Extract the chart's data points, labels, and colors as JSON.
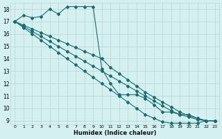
{
  "bg_color": "#d4f0f0",
  "grid_color": "#b8d4d4",
  "line_color": "#1a6b6b",
  "xlabel": "Humidex (Indice chaleur)",
  "ylim": [
    8.7,
    18.5
  ],
  "xlim": [
    -0.5,
    23.5
  ],
  "yticks": [
    9,
    10,
    11,
    12,
    13,
    14,
    15,
    16,
    17,
    18
  ],
  "xticks": [
    0,
    1,
    2,
    3,
    4,
    5,
    6,
    7,
    8,
    9,
    10,
    11,
    12,
    13,
    14,
    15,
    16,
    17,
    18,
    19,
    20,
    21,
    22,
    23
  ],
  "series1_x": [
    0,
    1,
    2,
    3,
    4,
    5,
    6,
    7,
    8,
    9,
    10,
    11,
    12,
    13,
    14,
    15,
    16,
    17,
    18,
    19,
    20,
    21,
    22,
    23
  ],
  "series1_y": [
    17.0,
    17.5,
    17.3,
    17.4,
    18.0,
    17.6,
    18.2,
    18.2,
    18.2,
    18.2,
    13.2,
    12.0,
    11.1,
    11.1,
    11.1,
    10.8,
    10.3,
    9.7,
    9.7,
    9.5,
    9.5,
    9.2,
    9.0,
    9.0
  ],
  "series2_x": [
    0,
    1,
    2,
    3,
    4,
    5,
    6,
    7,
    8,
    9,
    10,
    11,
    12,
    13,
    14,
    15,
    16,
    17,
    18,
    19,
    20,
    21,
    22,
    23
  ],
  "series2_y": [
    17.0,
    16.6,
    16.2,
    15.8,
    15.4,
    15.0,
    14.6,
    14.2,
    13.8,
    13.4,
    13.0,
    12.6,
    12.2,
    11.8,
    11.4,
    11.0,
    10.6,
    10.2,
    9.8,
    9.5,
    9.3,
    9.1,
    9.0,
    9.0
  ],
  "series3_x": [
    0,
    1,
    2,
    3,
    4,
    5,
    6,
    7,
    8,
    9,
    10,
    11,
    12,
    13,
    14,
    15,
    16,
    17,
    18,
    19,
    20,
    21,
    22,
    23
  ],
  "series3_y": [
    17.0,
    16.7,
    16.4,
    16.1,
    15.8,
    15.5,
    15.2,
    14.9,
    14.6,
    14.3,
    14.0,
    13.3,
    12.8,
    12.3,
    11.8,
    11.3,
    10.9,
    10.5,
    10.1,
    9.7,
    9.4,
    9.2,
    9.0,
    9.0
  ],
  "series4_x": [
    0,
    1,
    2,
    3,
    4,
    5,
    6,
    7,
    8,
    9,
    10,
    11,
    12,
    13,
    14,
    15,
    16,
    17,
    18,
    19,
    20,
    21,
    22,
    23
  ],
  "series4_y": [
    17.0,
    16.5,
    16.0,
    15.5,
    15.0,
    14.5,
    14.0,
    13.5,
    13.0,
    12.5,
    12.0,
    11.5,
    11.0,
    10.5,
    10.0,
    9.5,
    9.2,
    8.9,
    8.8,
    8.8,
    8.8,
    8.8,
    9.0,
    9.0
  ]
}
